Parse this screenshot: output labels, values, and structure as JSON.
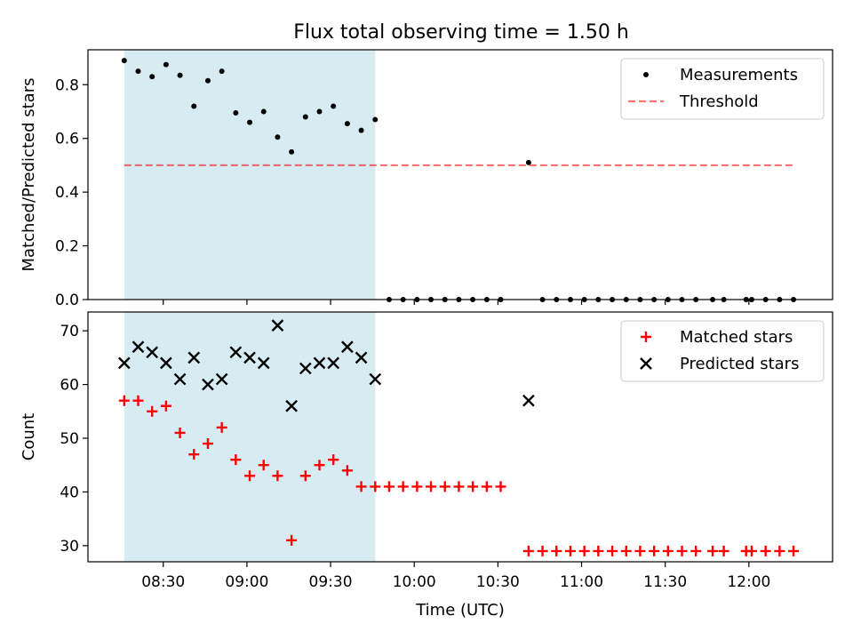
{
  "figure_title": "Flux total observing time = 1.50 h",
  "colors": {
    "shade": "#add8e6",
    "measurement": "#000000",
    "threshold": "#ff0000",
    "matched": "#ff0000",
    "predicted": "#000000"
  },
  "chart_data": [
    {
      "type": "scatter",
      "ylabel": "Matched/Predicted stars",
      "ylim": [
        0.0,
        0.93
      ],
      "yticks": [
        0.0,
        0.2,
        0.4,
        0.6,
        0.8
      ],
      "ytick_labels": [
        "0.0",
        "0.2",
        "0.4",
        "0.6",
        "0.8"
      ],
      "xlim": [
        "08:03",
        "12:30"
      ],
      "xticks": [
        "08:30",
        "09:00",
        "09:30",
        "10:00",
        "10:30",
        "11:00",
        "11:30",
        "12:00"
      ],
      "shaded_span": [
        "08:16",
        "09:46"
      ],
      "legend": {
        "position": "upper right",
        "entries": [
          "Measurements",
          "Threshold"
        ]
      },
      "threshold": {
        "name": "Threshold",
        "value": 0.5,
        "x_start": "08:16",
        "x_end": "12:16"
      },
      "series": [
        {
          "name": "Measurements",
          "marker": "dot",
          "x": [
            "08:16",
            "08:21",
            "08:26",
            "08:31",
            "08:36",
            "08:41",
            "08:46",
            "08:51",
            "08:56",
            "09:01",
            "09:06",
            "09:11",
            "09:16",
            "09:21",
            "09:26",
            "09:31",
            "09:36",
            "09:41",
            "09:46",
            "09:51",
            "09:56",
            "10:01",
            "10:06",
            "10:11",
            "10:16",
            "10:21",
            "10:26",
            "10:31",
            "10:46",
            "10:51",
            "10:56",
            "11:01",
            "11:06",
            "11:11",
            "11:16",
            "11:21",
            "11:26",
            "11:31",
            "11:36",
            "11:41",
            "11:47",
            "11:51",
            "11:59",
            "12:01",
            "12:06",
            "12:11",
            "12:16",
            "10:41"
          ],
          "values": [
            0.89,
            0.85,
            0.83,
            0.875,
            0.835,
            0.72,
            0.815,
            0.85,
            0.695,
            0.66,
            0.7,
            0.605,
            0.55,
            0.68,
            0.7,
            0.72,
            0.655,
            0.63,
            0.67,
            0,
            0,
            0,
            0,
            0,
            0,
            0,
            0,
            0,
            0,
            0,
            0,
            0,
            0,
            0,
            0,
            0,
            0,
            0,
            0,
            0,
            0,
            0,
            0,
            0,
            0,
            0,
            0,
            0.51
          ]
        }
      ]
    },
    {
      "type": "scatter",
      "ylabel": "Count",
      "xlabel": "Time (UTC)",
      "ylim": [
        27,
        73.5
      ],
      "yticks": [
        30,
        40,
        50,
        60,
        70
      ],
      "ytick_labels": [
        "30",
        "40",
        "50",
        "60",
        "70"
      ],
      "xlim": [
        "08:03",
        "12:30"
      ],
      "xticks": [
        "08:30",
        "09:00",
        "09:30",
        "10:00",
        "10:30",
        "11:00",
        "11:30",
        "12:00"
      ],
      "xtick_labels": [
        "08:30",
        "09:00",
        "09:30",
        "10:00",
        "10:30",
        "11:00",
        "11:30",
        "12:00"
      ],
      "shaded_span": [
        "08:16",
        "09:46"
      ],
      "legend": {
        "position": "upper right",
        "entries": [
          "Matched stars",
          "Predicted stars"
        ]
      },
      "series": [
        {
          "name": "Matched stars",
          "marker": "plus",
          "x": [
            "08:16",
            "08:21",
            "08:26",
            "08:31",
            "08:36",
            "08:41",
            "08:46",
            "08:51",
            "08:56",
            "09:01",
            "09:06",
            "09:11",
            "09:16",
            "09:21",
            "09:26",
            "09:31",
            "09:36",
            "09:41",
            "09:46",
            "09:51",
            "09:56",
            "10:01",
            "10:06",
            "10:11",
            "10:16",
            "10:21",
            "10:26",
            "10:31",
            "10:41",
            "10:46",
            "10:51",
            "10:56",
            "11:01",
            "11:06",
            "11:11",
            "11:16",
            "11:21",
            "11:26",
            "11:31",
            "11:36",
            "11:41",
            "11:47",
            "11:51",
            "11:59",
            "12:01",
            "12:06",
            "12:11",
            "12:16"
          ],
          "values": [
            57,
            57,
            55,
            56,
            51,
            47,
            49,
            52,
            46,
            43,
            45,
            43,
            31,
            43,
            45,
            46,
            44,
            41,
            41,
            41,
            41,
            41,
            41,
            41,
            41,
            41,
            41,
            41,
            29,
            29,
            29,
            29,
            29,
            29,
            29,
            29,
            29,
            29,
            29,
            29,
            29,
            29,
            29,
            29,
            29,
            29,
            29,
            29
          ]
        },
        {
          "name": "Predicted stars",
          "marker": "x",
          "x": [
            "08:16",
            "08:21",
            "08:26",
            "08:31",
            "08:36",
            "08:41",
            "08:46",
            "08:51",
            "08:56",
            "09:01",
            "09:06",
            "09:11",
            "09:16",
            "09:21",
            "09:26",
            "09:31",
            "09:36",
            "09:41",
            "09:46",
            "10:41"
          ],
          "values": [
            64,
            67,
            66,
            64,
            61,
            65,
            60,
            61,
            66,
            65,
            64,
            71,
            56,
            63,
            64,
            64,
            67,
            65,
            61,
            57
          ]
        }
      ]
    }
  ]
}
